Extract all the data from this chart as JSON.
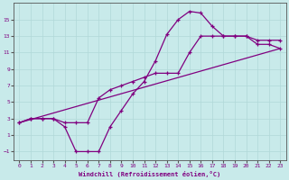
{
  "xlabel": "Windchill (Refroidissement éolien,°C)",
  "bg_color": "#c8eaea",
  "grid_color": "#b0d8d8",
  "line_color": "#800080",
  "xlim": [
    -0.5,
    23.5
  ],
  "ylim": [
    -2,
    17
  ],
  "xticks": [
    0,
    1,
    2,
    3,
    4,
    5,
    6,
    7,
    8,
    9,
    10,
    11,
    12,
    13,
    14,
    15,
    16,
    17,
    18,
    19,
    20,
    21,
    22,
    23
  ],
  "yticks": [
    -1,
    1,
    3,
    5,
    7,
    9,
    11,
    13,
    15
  ],
  "curve1_x": [
    0,
    1,
    2,
    3,
    4,
    5,
    6,
    7,
    8,
    9,
    10,
    11,
    12,
    13,
    14,
    15,
    16,
    17,
    18,
    19,
    20,
    21,
    22,
    23
  ],
  "curve1_y": [
    2.5,
    3.0,
    3.0,
    3.0,
    2.0,
    -1.0,
    -1.0,
    -1.0,
    2.0,
    4.0,
    6.0,
    7.5,
    10.0,
    13.2,
    15.0,
    16.0,
    15.8,
    14.2,
    13.0,
    13.0,
    13.0,
    12.5,
    12.5,
    12.5
  ],
  "curve2_x": [
    0,
    1,
    2,
    3,
    4,
    5,
    6,
    7,
    8,
    9,
    10,
    11,
    12,
    13,
    14,
    15,
    16,
    17,
    18,
    19,
    20,
    21,
    22,
    23
  ],
  "curve2_y": [
    2.5,
    3.0,
    3.0,
    3.0,
    2.5,
    2.5,
    2.5,
    5.5,
    6.5,
    7.0,
    7.5,
    8.0,
    8.5,
    8.5,
    8.5,
    11.0,
    13.0,
    13.0,
    13.0,
    13.0,
    13.0,
    12.0,
    12.0,
    11.5
  ],
  "curve3_x": [
    0,
    23
  ],
  "curve3_y": [
    2.5,
    11.5
  ]
}
